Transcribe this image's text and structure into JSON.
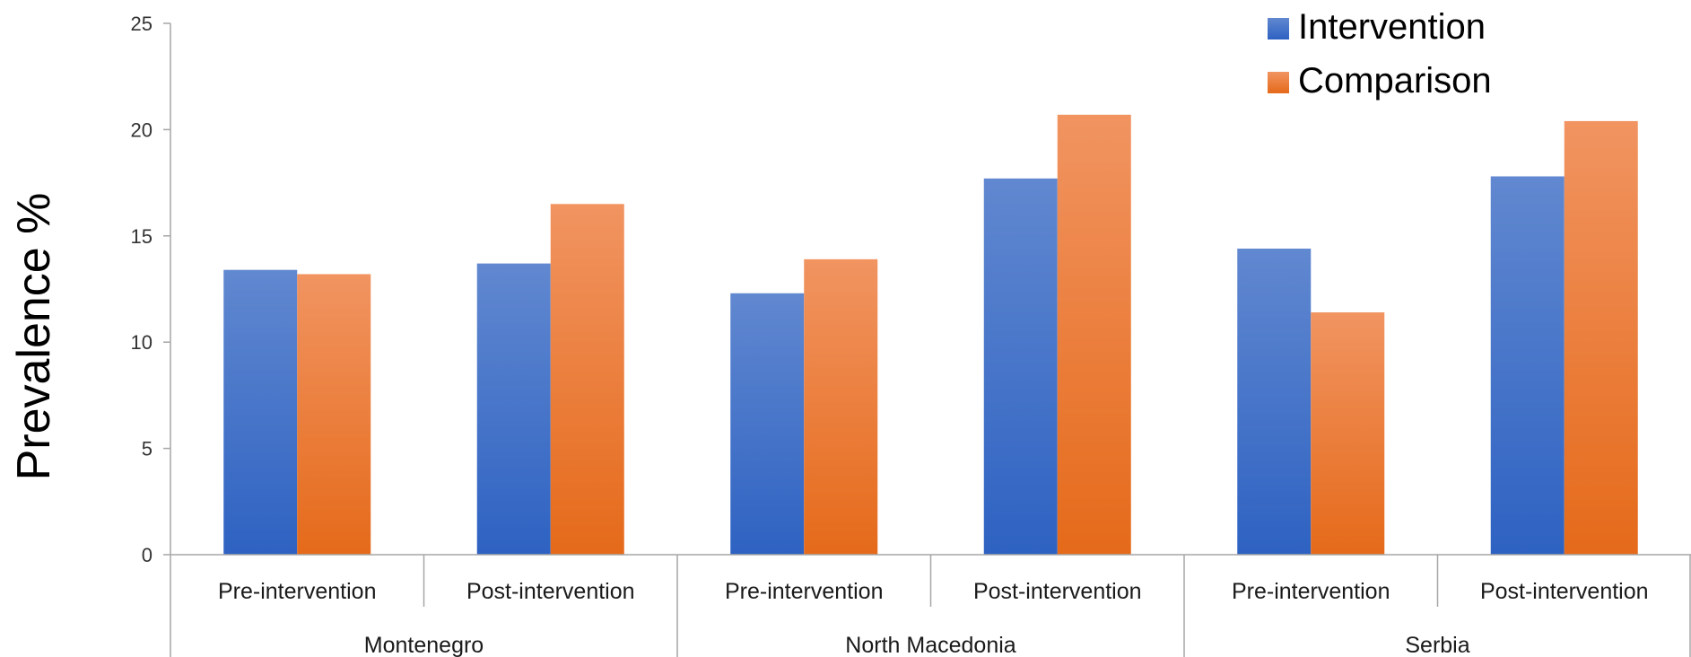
{
  "chart_data": {
    "type": "bar",
    "groups": [
      {
        "name": "Montenegro",
        "categories": [
          "Pre-intervention",
          "Post-intervention"
        ]
      },
      {
        "name": "North Macedonia",
        "categories": [
          "Pre-intervention",
          "Post-intervention"
        ]
      },
      {
        "name": "Serbia",
        "categories": [
          "Pre-intervention",
          "Post-intervention"
        ]
      }
    ],
    "series": [
      {
        "name": "Intervention",
        "color": "#4472C4",
        "values": [
          13.4,
          13.7,
          12.3,
          17.7,
          14.4,
          17.8
        ]
      },
      {
        "name": "Comparison",
        "color": "#ED7D31",
        "values": [
          13.2,
          16.5,
          13.9,
          20.7,
          11.4,
          20.4
        ]
      }
    ],
    "ylabel": "Prevalence %",
    "ylim": [
      0,
      25
    ],
    "yticks": [
      0,
      5,
      10,
      15,
      20,
      25
    ],
    "grid": false,
    "legend": "top-right"
  }
}
